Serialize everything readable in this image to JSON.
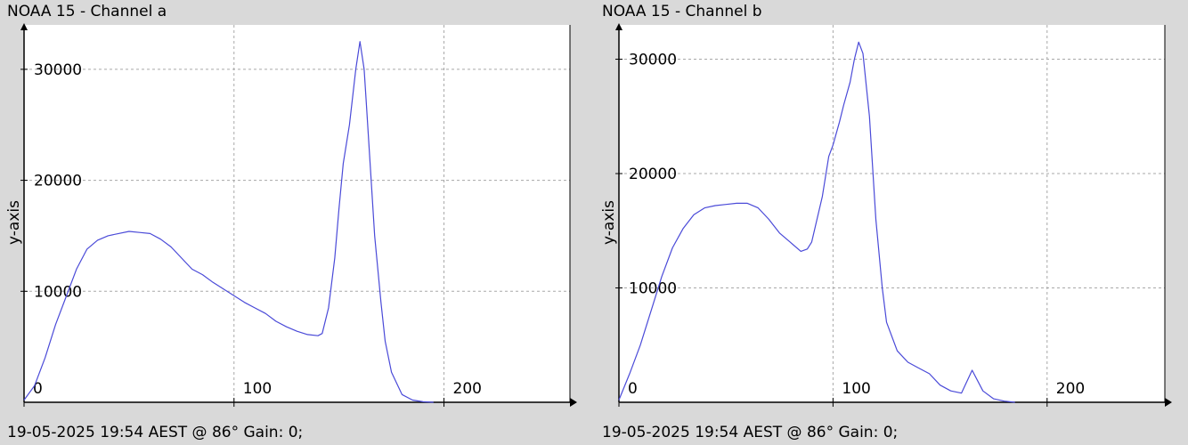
{
  "chart_data": [
    {
      "type": "line",
      "title": "NOAA 15 - Channel a",
      "ylabel": "y-axis",
      "xlabel": "",
      "footer": "19-05-2025 19:54 AEST @ 86° Gain: 0;",
      "xlim": [
        0,
        260
      ],
      "ylim": [
        0,
        34000
      ],
      "xticks": [
        0,
        100,
        200
      ],
      "yticks": [
        10000,
        20000,
        30000
      ],
      "grid": true,
      "line_color": "#4a4ad8",
      "series": [
        {
          "x": [
            0,
            5,
            10,
            15,
            20,
            25,
            30,
            35,
            40,
            45,
            50,
            55,
            60,
            65,
            70,
            75,
            80,
            85,
            90,
            95,
            100,
            105,
            110,
            115,
            120,
            125,
            130,
            135,
            140,
            142,
            145,
            148,
            150,
            152,
            155,
            158,
            160,
            162,
            163,
            165,
            167,
            170,
            172,
            175,
            180,
            185,
            190,
            195
          ],
          "y": [
            200,
            1500,
            4000,
            7000,
            9500,
            12000,
            13800,
            14600,
            15000,
            15200,
            15400,
            15300,
            15200,
            14700,
            14000,
            13000,
            12000,
            11500,
            10800,
            10200,
            9600,
            9000,
            8500,
            8000,
            7300,
            6800,
            6400,
            6100,
            6000,
            6200,
            8500,
            13000,
            17500,
            21500,
            25000,
            30000,
            32500,
            30000,
            27000,
            21000,
            15000,
            9000,
            5500,
            2700,
            700,
            200,
            50,
            0
          ]
        }
      ]
    },
    {
      "type": "line",
      "title": "NOAA 15 - Channel b",
      "ylabel": "y-axis",
      "xlabel": "",
      "footer": "19-05-2025 19:54 AEST @ 86° Gain: 0;",
      "xlim": [
        0,
        255
      ],
      "ylim": [
        0,
        33000
      ],
      "xticks": [
        0,
        100,
        200
      ],
      "yticks": [
        10000,
        20000,
        30000
      ],
      "grid": true,
      "line_color": "#4a4ad8",
      "series": [
        {
          "x": [
            0,
            5,
            10,
            15,
            20,
            25,
            30,
            35,
            40,
            45,
            50,
            55,
            60,
            65,
            70,
            75,
            80,
            85,
            88,
            90,
            95,
            98,
            100,
            103,
            105,
            108,
            110,
            112,
            114,
            117,
            120,
            123,
            125,
            130,
            135,
            140,
            145,
            150,
            155,
            160,
            165,
            170,
            175,
            180,
            185
          ],
          "y": [
            200,
            2500,
            5000,
            8000,
            11000,
            13500,
            15200,
            16400,
            17000,
            17200,
            17300,
            17400,
            17400,
            17000,
            16000,
            14800,
            14000,
            13200,
            13400,
            14000,
            18000,
            21500,
            22500,
            24500,
            26000,
            28000,
            30000,
            31500,
            30500,
            25000,
            16000,
            10000,
            7000,
            4500,
            3500,
            3000,
            2500,
            1500,
            1000,
            800,
            2800,
            1000,
            300,
            100,
            0
          ]
        }
      ]
    }
  ]
}
